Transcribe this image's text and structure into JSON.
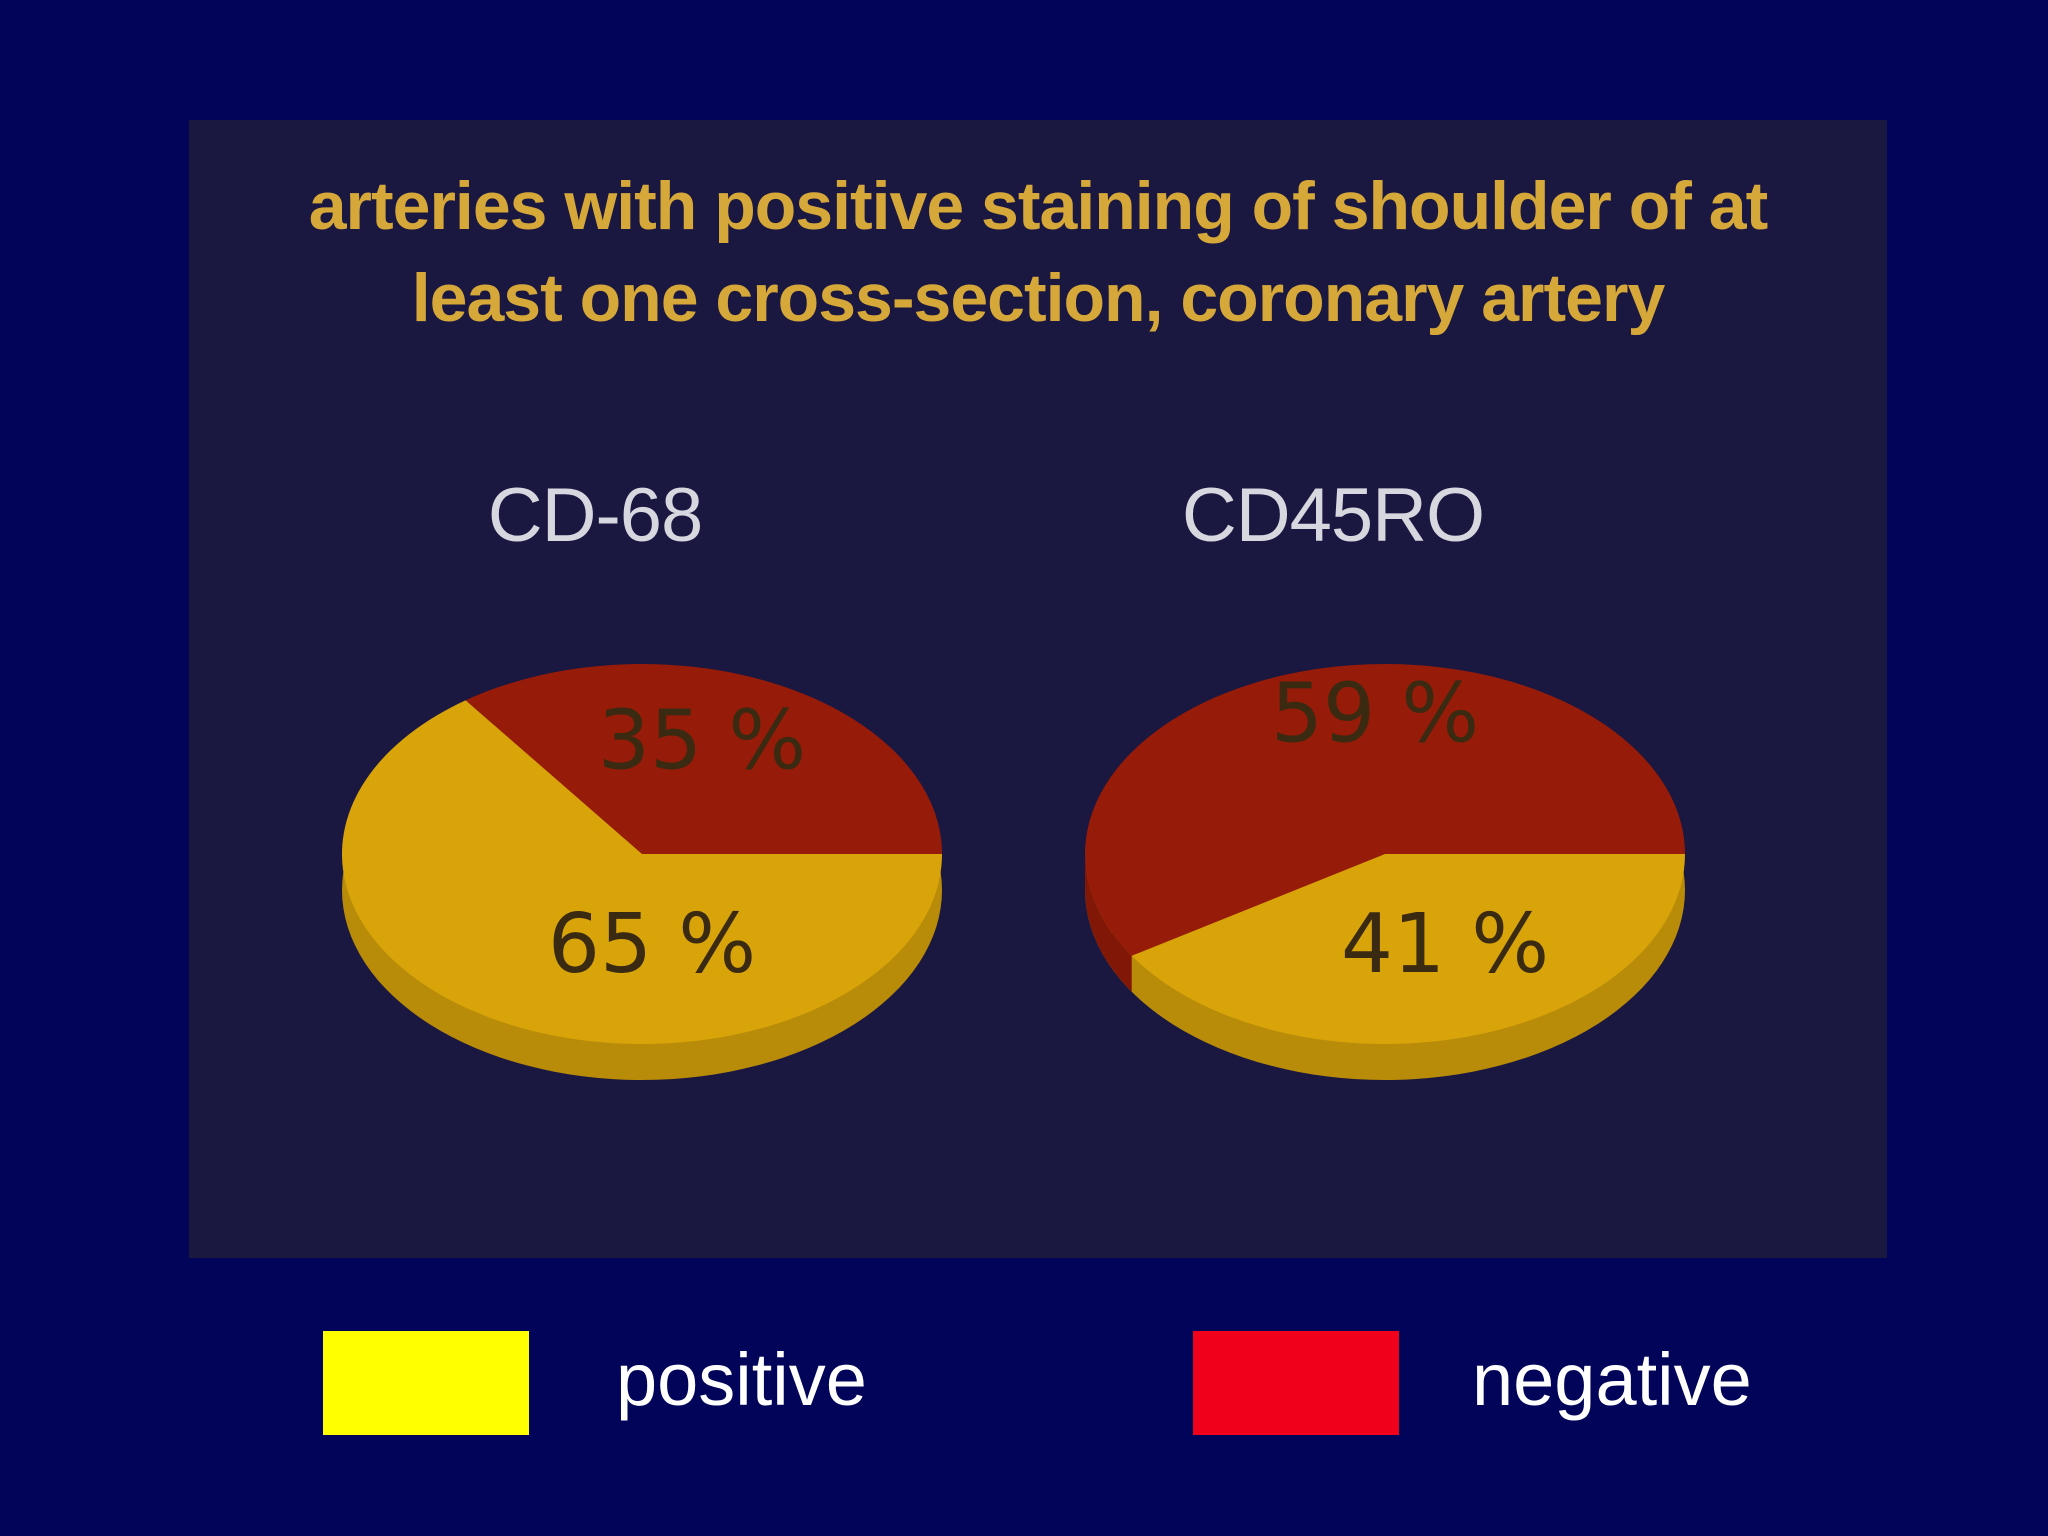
{
  "chart_data": {
    "type": "pie",
    "title": "arteries with positive staining of shoulder of at least one cross-section, coronary artery",
    "title_lines": [
      "arteries with positive staining of shoulder of at",
      "least one cross-section, coronary artery"
    ],
    "colors": {
      "background": "#02045a",
      "panel": "#1a1740",
      "title": "#d6a83a",
      "positive_slice": "#d8a40a",
      "negative_slice": "#961b08",
      "legend_positive": "#ffff00",
      "legend_negative": "#f1001c"
    },
    "charts": [
      {
        "name": "CD-68",
        "slices": [
          {
            "category": "positive",
            "value": 65,
            "label": "65 %"
          },
          {
            "category": "negative",
            "value": 35,
            "label": "35 %"
          }
        ]
      },
      {
        "name": "CD45RO",
        "slices": [
          {
            "category": "positive",
            "value": 41,
            "label": "41 %"
          },
          {
            "category": "negative",
            "value": 59,
            "label": "59 %"
          }
        ]
      }
    ],
    "legend": [
      {
        "key": "positive",
        "label": "positive",
        "color": "#ffff00"
      },
      {
        "key": "negative",
        "label": "negative",
        "color": "#f1001c"
      }
    ]
  }
}
